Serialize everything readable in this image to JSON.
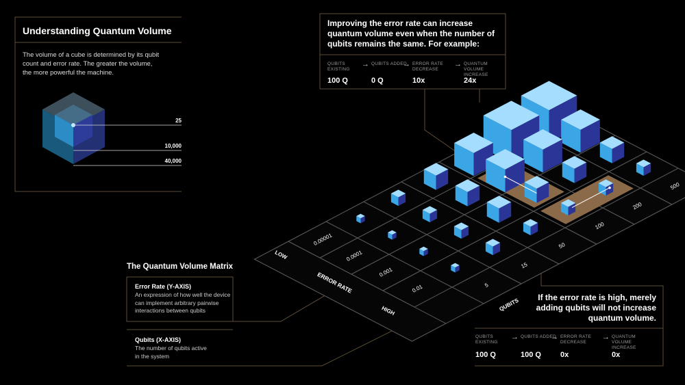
{
  "intro": {
    "title": "Understanding Quantum Volume",
    "body": "The volume of a cube is determined by its qubit count and error rate. The greater the volume, the more powerful the machine.",
    "labels": [
      "25",
      "10,000",
      "40,000"
    ]
  },
  "example_improve": {
    "text": "Improving the error rate can increase quantum volume even when the number of qubits remains the same. For example:",
    "columns": [
      {
        "label": "QUBITS EXISTING",
        "value": "100 Q"
      },
      {
        "label": "QUBITS ADDED",
        "value": "0 Q"
      },
      {
        "label": "ERROR RATE DECREASE",
        "value": "10x"
      },
      {
        "label": "QUANTUM VOLUME INCREASE",
        "value": "24x"
      }
    ]
  },
  "example_high": {
    "text": "If the error rate is high, merely adding qubits will not increase quantum volume.",
    "columns": [
      {
        "label": "QUBITS EXISTING",
        "value": "100 Q"
      },
      {
        "label": "QUBITS ADDED",
        "value": "100 Q"
      },
      {
        "label": "ERROR RATE DECREASE",
        "value": "0x"
      },
      {
        "label": "QUANTUM VOLUME INCREASE",
        "value": "0x"
      }
    ]
  },
  "matrix": {
    "title": "The Quantum Volume Matrix",
    "y_axis": {
      "title": "Error Rate (Y-AXIS)",
      "description": "An expression of how well the device can implement arbitrary pairwise interactions between qubits"
    },
    "x_axis": {
      "title": "Qubits (X-AXIS)",
      "description": "The number of qubits active in the system"
    },
    "error_rates": [
      "0.00001",
      "0.0001",
      "0.001",
      "0.01"
    ],
    "error_low": "LOW",
    "error_title": "ERROR RATE",
    "error_high": "HIGH",
    "qubit_counts": [
      "5",
      "15",
      "50",
      "100",
      "200",
      "500"
    ],
    "qubits_title": "QUBITS"
  }
}
